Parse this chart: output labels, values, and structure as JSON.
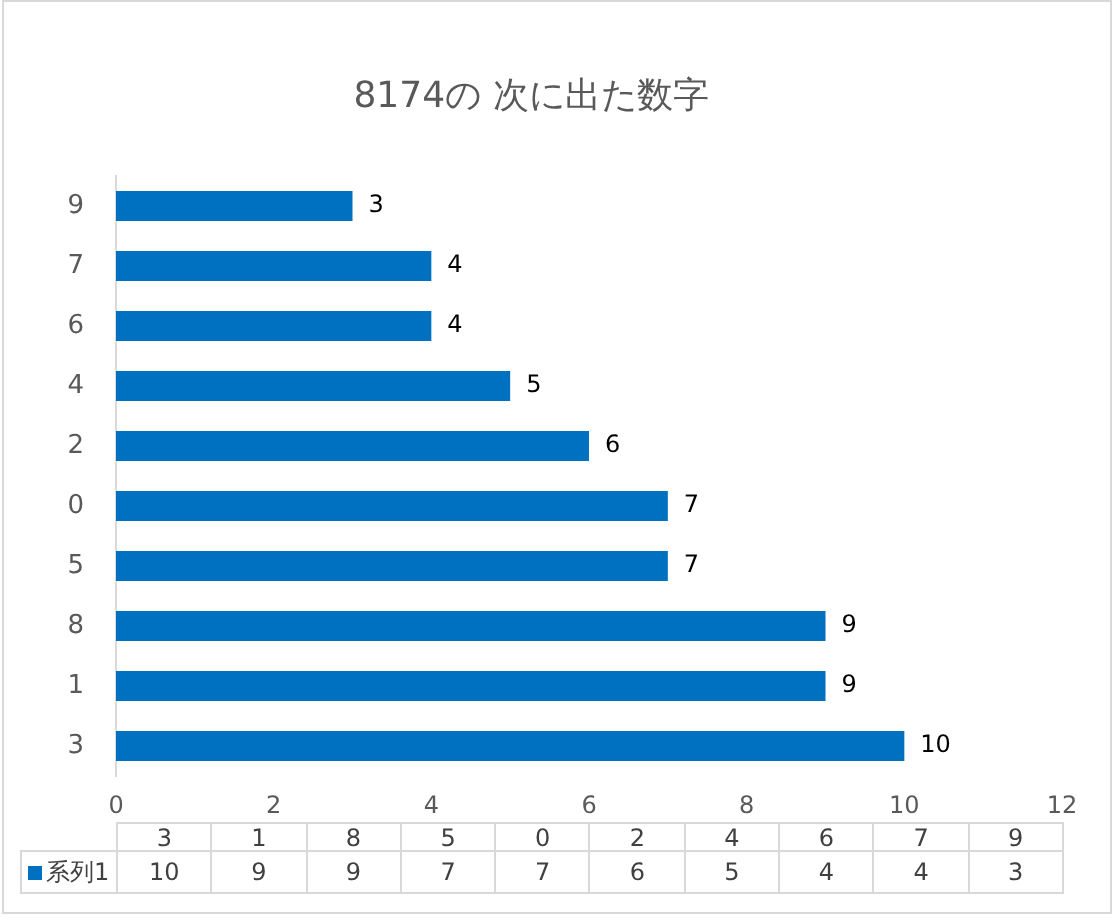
{
  "chart_data": {
    "type": "bar",
    "title": "8174の 次に出た数字",
    "orientation": "horizontal",
    "categories": [
      "9",
      "7",
      "6",
      "4",
      "2",
      "0",
      "5",
      "8",
      "1",
      "3"
    ],
    "series": [
      {
        "name": "系列1",
        "color": "#0070c0",
        "values": [
          3,
          4,
          4,
          5,
          6,
          7,
          7,
          9,
          9,
          10
        ],
        "value_labels": [
          "3",
          "4",
          "4",
          "5",
          "6",
          "7",
          "7",
          "9",
          "9",
          "10"
        ]
      }
    ],
    "xlim": [
      0,
      12
    ],
    "xticks": [
      0,
      2,
      4,
      6,
      8,
      10,
      12
    ]
  }
}
